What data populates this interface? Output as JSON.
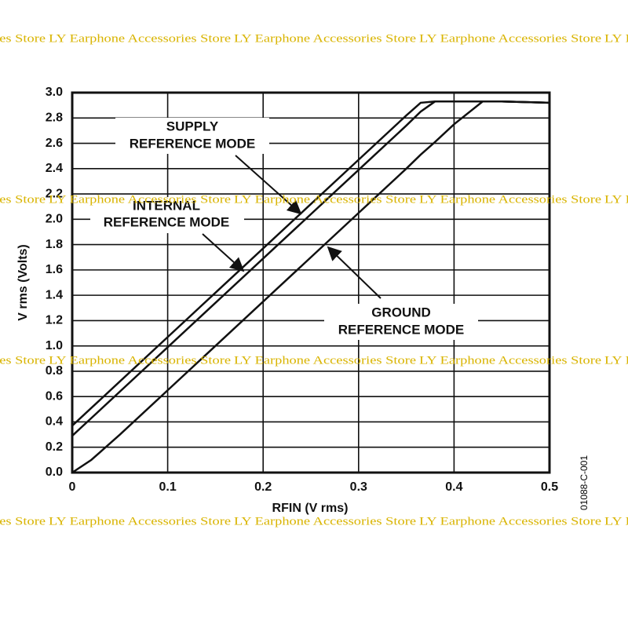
{
  "chart_data": {
    "type": "line",
    "x_label": "RFIN (V rms)",
    "y_label": "V rms (Volts)",
    "figure_code": "01088-C-001",
    "watermark": "LY Earphone Accessories Store",
    "annotations": [
      "SUPPLY",
      "REFERENCE MODE",
      "INTERNAL",
      "REFERENCE MODE",
      "GROUND",
      "REFERENCE MODE"
    ],
    "x": [
      0,
      0.02,
      0.05,
      0.1,
      0.15,
      0.2,
      0.25,
      0.3,
      0.35,
      0.365,
      0.38,
      0.4,
      0.43,
      0.45,
      0.5
    ],
    "series": [
      {
        "color": "#111111",
        "values": [
          0.37,
          0.51,
          0.72,
          1.07,
          1.42,
          1.77,
          2.12,
          2.47,
          2.82,
          2.92,
          2.93,
          2.93,
          2.93,
          2.93,
          2.92
        ]
      },
      {
        "color": "#111111",
        "values": [
          0.29,
          0.43,
          0.64,
          0.99,
          1.34,
          1.69,
          2.04,
          2.39,
          2.74,
          2.85,
          2.93,
          2.93,
          2.93,
          2.93,
          2.92
        ]
      },
      {
        "color": "#111111",
        "values": [
          0,
          0.1,
          0.3,
          0.65,
          1.0,
          1.35,
          1.7,
          2.05,
          2.4,
          2.51,
          2.61,
          2.75,
          2.93,
          2.93,
          2.92
        ]
      }
    ],
    "xlim": [
      0,
      0.5
    ],
    "xticks": [
      0,
      0.1,
      0.2,
      0.3,
      0.4,
      0.5
    ],
    "ylim": [
      0,
      3.0
    ],
    "yticks": [
      {
        "value": 0,
        "label": "0.0"
      },
      0.2,
      0.4,
      0.6,
      0.8,
      {
        "value": 1,
        "label": "1.0"
      },
      1.2,
      1.4,
      1.6,
      1.8,
      {
        "value": 2,
        "label": "2.0"
      },
      2.2,
      2.4,
      2.6,
      2.8,
      {
        "value": 3,
        "label": "3.0"
      }
    ],
    "grid": true
  }
}
